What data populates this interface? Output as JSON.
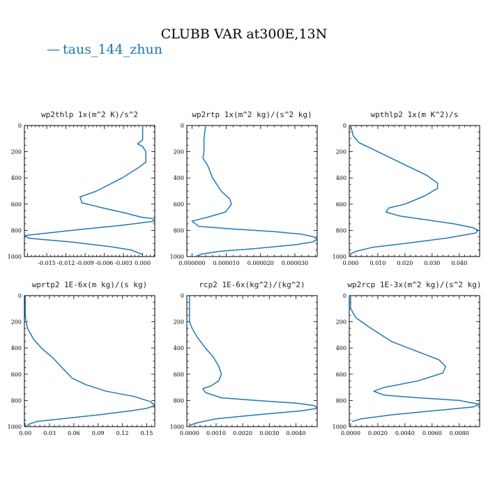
{
  "figure": {
    "title": "CLUBB VAR at300E,13N",
    "legend": {
      "label": "taus_144_zhun",
      "marker": "—",
      "color": "#1f77b4"
    }
  },
  "chart_data": [
    {
      "type": "line",
      "title": "wp2thlp  1x(m^2 K)/s^2",
      "xlim": [
        -0.0185,
        0.0019
      ],
      "ylim": [
        1000,
        0
      ],
      "xticks": [
        -0.015,
        -0.012,
        -0.009,
        -0.006,
        -0.003,
        0.0
      ],
      "xtick_labels": [
        "-0.015",
        "-0.012",
        "-0.009",
        "-0.006",
        "-0.003",
        "0.000"
      ],
      "yticks": [
        0,
        200,
        400,
        600,
        800,
        1000
      ],
      "x": [
        0.0,
        0.0,
        -0.0008,
        0.0,
        0.0005,
        0.0005,
        -0.0006,
        -0.0032,
        -0.0072,
        -0.0098,
        -0.0095,
        -0.0062,
        -0.0025,
        -0.0002,
        0.0015,
        0.0019,
        -0.003,
        -0.011,
        -0.0185,
        -0.0178,
        -0.011,
        -0.005,
        -0.0018,
        0.0
      ],
      "y": [
        0,
        110,
        140,
        160,
        200,
        280,
        320,
        400,
        500,
        545,
        590,
        630,
        670,
        700,
        710,
        730,
        760,
        800,
        840,
        860,
        890,
        925,
        950,
        985
      ]
    },
    {
      "type": "line",
      "title": "wp2rtp  1x(m^2 kg)/(s^2 kg)",
      "xlim": [
        -1.5e-06,
        3.65e-05
      ],
      "ylim": [
        1000,
        0
      ],
      "xticks": [
        0.0,
        1e-05,
        2e-05,
        3e-05
      ],
      "xtick_labels": [
        "0.000000",
        "0.000010",
        "0.000020",
        "0.000030"
      ],
      "yticks": [
        0,
        200,
        400,
        600,
        800,
        1000
      ],
      "x": [
        4e-06,
        3.5e-06,
        3.5e-06,
        3.2e-06,
        4.5e-06,
        6e-06,
        8.5e-06,
        1.1e-05,
        1.15e-05,
        9.8e-06,
        4.5e-06,
        0.0,
        2e-06,
        1.2e-05,
        2.4e-05,
        3.2e-05,
        3.55e-05,
        3.65e-05,
        3.5e-05,
        3e-05,
        1.8e-05,
        8e-06,
        3e-06,
        1e-06
      ],
      "y": [
        0,
        100,
        200,
        250,
        300,
        400,
        500,
        560,
        600,
        660,
        700,
        730,
        770,
        790,
        810,
        830,
        850,
        870,
        890,
        910,
        940,
        960,
        980,
        1000
      ]
    },
    {
      "type": "line",
      "title": "wpthlp2  1x(m K^2)/s",
      "xlim": [
        -0.0005,
        0.0475
      ],
      "ylim": [
        1000,
        0
      ],
      "xticks": [
        0.0,
        0.01,
        0.02,
        0.03,
        0.04
      ],
      "xtick_labels": [
        "0.000",
        "0.010",
        "0.020",
        "0.030",
        "0.040"
      ],
      "yticks": [
        0,
        200,
        400,
        600,
        800,
        1000
      ],
      "x": [
        0.0,
        0.001,
        0.003,
        0.01,
        0.02,
        0.028,
        0.032,
        0.032,
        0.027,
        0.02,
        0.014,
        0.013,
        0.018,
        0.028,
        0.038,
        0.045,
        0.047,
        0.046,
        0.035,
        0.02,
        0.008,
        0.002,
        0.0
      ],
      "y": [
        0,
        80,
        130,
        200,
        300,
        380,
        440,
        480,
        540,
        600,
        630,
        660,
        690,
        720,
        750,
        780,
        800,
        820,
        860,
        900,
        930,
        960,
        980
      ]
    },
    {
      "type": "line",
      "title": "wprtp2  1E-6x(m kg)/(s kg)",
      "xlim": [
        -0.001,
        0.16
      ],
      "ylim": [
        1000,
        0
      ],
      "xticks": [
        0.0,
        0.03,
        0.06,
        0.09,
        0.12,
        0.15
      ],
      "xtick_labels": [
        "0.00",
        "0.03",
        "0.06",
        "0.09",
        "0.12",
        "0.15"
      ],
      "yticks": [
        0,
        200,
        400,
        600,
        800,
        1000
      ],
      "x": [
        0.0,
        0.0,
        0.001,
        0.003,
        0.01,
        0.02,
        0.035,
        0.047,
        0.058,
        0.075,
        0.1,
        0.135,
        0.155,
        0.16,
        0.15,
        0.13,
        0.09,
        0.045,
        0.015,
        0.005,
        0.002,
        0.0
      ],
      "y": [
        0,
        150,
        200,
        250,
        330,
        400,
        480,
        560,
        630,
        680,
        730,
        770,
        810,
        840,
        860,
        880,
        910,
        940,
        960,
        980,
        995,
        1000
      ]
    },
    {
      "type": "line",
      "title": "rcp2  1E-6x(kg^2)/(kg^2)",
      "xlim": [
        -0.0001,
        0.0048
      ],
      "ylim": [
        1000,
        0
      ],
      "xticks": [
        0.0,
        0.001,
        0.002,
        0.003,
        0.004
      ],
      "xtick_labels": [
        "0.0000",
        "0.0010",
        "0.0020",
        "0.0030",
        "0.0040"
      ],
      "yticks": [
        0,
        200,
        400,
        600,
        800,
        1000
      ],
      "x": [
        0.0,
        0.0,
        0.0001,
        0.0003,
        0.0006,
        0.0009,
        0.0011,
        0.0012,
        0.0011,
        0.0008,
        0.0005,
        0.0006,
        0.0012,
        0.0025,
        0.004,
        0.0047,
        0.0048,
        0.0042,
        0.0025,
        0.001,
        0.0003,
        0.0
      ],
      "y": [
        0,
        200,
        250,
        320,
        400,
        470,
        540,
        600,
        650,
        690,
        710,
        740,
        780,
        800,
        820,
        840,
        860,
        880,
        910,
        940,
        970,
        990
      ]
    },
    {
      "type": "line",
      "title": "wp2rcp  1E-3x(m^2 kg)/(s^2 kg)",
      "xlim": [
        -0.0001,
        0.0095
      ],
      "ylim": [
        1000,
        0
      ],
      "xticks": [
        0.0,
        0.002,
        0.004,
        0.006,
        0.008
      ],
      "xtick_labels": [
        "0.0000",
        "0.0020",
        "0.0040",
        "0.0060",
        "0.0080"
      ],
      "yticks": [
        0,
        200,
        400,
        600,
        800,
        1000
      ],
      "x": [
        0.0,
        0.0,
        0.0004,
        0.0015,
        0.003,
        0.005,
        0.0065,
        0.007,
        0.0068,
        0.005,
        0.0025,
        0.0017,
        0.0025,
        0.005,
        0.008,
        0.0095,
        0.009,
        0.006,
        0.003,
        0.0008,
        0.0001
      ],
      "y": [
        0,
        100,
        170,
        250,
        350,
        430,
        490,
        540,
        590,
        650,
        700,
        730,
        760,
        780,
        800,
        830,
        850,
        880,
        910,
        940,
        960
      ]
    }
  ]
}
